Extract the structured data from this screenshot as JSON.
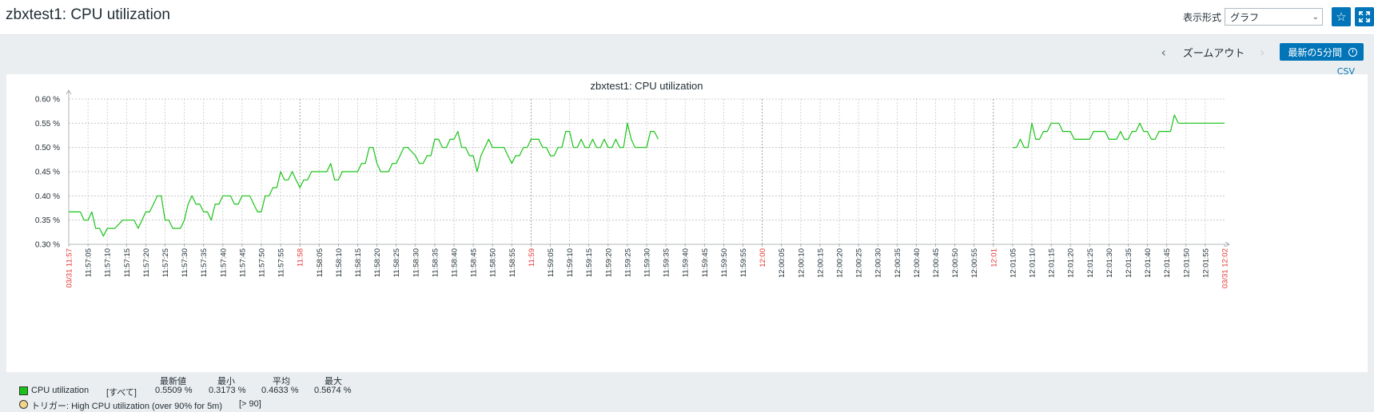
{
  "page": {
    "title": "zbxtest1: CPU utilization"
  },
  "header": {
    "view_label": "表示形式",
    "view_select": "グラフ",
    "favorite_icon": "star-icon",
    "fullscreen_icon": "fullscreen-icon"
  },
  "timebar": {
    "prev_icon": "chevron-left-icon",
    "zoom_out": "ズームアウト",
    "next_icon": "chevron-right-icon",
    "latest_button": "最新の5分間",
    "clock_icon": "clock-icon",
    "csv": "CSV"
  },
  "colors": {
    "series": "#1ac318",
    "accent": "#0275b8",
    "red_labels": "#e33734",
    "trigger": "#f2d48a"
  },
  "chart_data": {
    "type": "line",
    "title": "zbxtest1: CPU utilization",
    "y_ticks": [
      "0.60 %",
      "0.55 %",
      "0.50 %",
      "0.45 %",
      "0.40 %",
      "0.35 %",
      "0.30 %"
    ],
    "ylim": [
      0.3,
      0.6
    ],
    "x_ticks": [
      "03/31 11:57",
      "11:57:05",
      "11:57:10",
      "11:57:15",
      "11:57:20",
      "11:57:25",
      "11:57:30",
      "11:57:35",
      "11:57:40",
      "11:57:45",
      "11:57:50",
      "11:57:55",
      "11:58",
      "11:58:05",
      "11:58:10",
      "11:58:15",
      "11:58:20",
      "11:58:25",
      "11:58:30",
      "11:58:35",
      "11:58:40",
      "11:58:45",
      "11:58:50",
      "11:58:55",
      "11:59",
      "11:59:05",
      "11:59:10",
      "11:59:15",
      "11:59:20",
      "11:59:25",
      "11:59:30",
      "11:59:35",
      "11:59:40",
      "11:59:45",
      "11:59:50",
      "11:59:55",
      "12:00",
      "12:00:05",
      "12:00:10",
      "12:00:15",
      "12:00:20",
      "12:00:25",
      "12:00:30",
      "12:00:35",
      "12:00:40",
      "12:00:45",
      "12:00:50",
      "12:00:55",
      "12:01",
      "12:01:05",
      "12:01:10",
      "12:01:15",
      "12:01:20",
      "12:01:25",
      "12:01:30",
      "12:01:35",
      "12:01:40",
      "12:01:45",
      "12:01:50",
      "12:01:55",
      "03/31 12:02"
    ],
    "x_highlight": [
      "03/31 11:57",
      "11:58",
      "11:59",
      "12:00",
      "12:01",
      "03/31 12:02"
    ],
    "grid": true,
    "series": [
      {
        "name": "CPU utilization",
        "segments": [
          [
            [
              0,
              0.367
            ],
            [
              3,
              0.367
            ],
            [
              4,
              0.35
            ],
            [
              5,
              0.35
            ],
            [
              6,
              0.367
            ],
            [
              7,
              0.333
            ],
            [
              8,
              0.333
            ],
            [
              9,
              0.317
            ],
            [
              10,
              0.333
            ],
            [
              11,
              0.333
            ],
            [
              12,
              0.333
            ],
            [
              14,
              0.35
            ],
            [
              17,
              0.35
            ],
            [
              18,
              0.333
            ],
            [
              19,
              0.35
            ],
            [
              20,
              0.367
            ],
            [
              21,
              0.367
            ],
            [
              22,
              0.383
            ],
            [
              23,
              0.4
            ],
            [
              24,
              0.4
            ],
            [
              25,
              0.35
            ],
            [
              26,
              0.35
            ],
            [
              27,
              0.333
            ],
            [
              28,
              0.333
            ],
            [
              29,
              0.333
            ],
            [
              30,
              0.35
            ],
            [
              31,
              0.383
            ],
            [
              32,
              0.4
            ],
            [
              33,
              0.383
            ],
            [
              34,
              0.383
            ],
            [
              35,
              0.367
            ],
            [
              36,
              0.367
            ],
            [
              37,
              0.35
            ],
            [
              38,
              0.383
            ],
            [
              39,
              0.383
            ],
            [
              40,
              0.4
            ],
            [
              42,
              0.4
            ],
            [
              43,
              0.383
            ],
            [
              44,
              0.383
            ],
            [
              45,
              0.4
            ],
            [
              47,
              0.4
            ],
            [
              48,
              0.383
            ],
            [
              49,
              0.367
            ],
            [
              50,
              0.367
            ],
            [
              51,
              0.4
            ],
            [
              52,
              0.4
            ],
            [
              53,
              0.417
            ],
            [
              54,
              0.417
            ],
            [
              55,
              0.45
            ],
            [
              56,
              0.433
            ],
            [
              57,
              0.433
            ],
            [
              58,
              0.45
            ],
            [
              59,
              0.433
            ],
            [
              60,
              0.417
            ],
            [
              61,
              0.433
            ],
            [
              62,
              0.433
            ],
            [
              63,
              0.45
            ],
            [
              67,
              0.45
            ],
            [
              68,
              0.467
            ],
            [
              69,
              0.433
            ],
            [
              70,
              0.433
            ],
            [
              71,
              0.45
            ],
            [
              75,
              0.45
            ],
            [
              76,
              0.467
            ],
            [
              77,
              0.467
            ],
            [
              78,
              0.5
            ],
            [
              79,
              0.5
            ],
            [
              80,
              0.467
            ],
            [
              81,
              0.45
            ],
            [
              82,
              0.45
            ],
            [
              83,
              0.45
            ],
            [
              84,
              0.467
            ],
            [
              85,
              0.467
            ],
            [
              86,
              0.483
            ],
            [
              87,
              0.5
            ],
            [
              88,
              0.5
            ],
            [
              90,
              0.483
            ],
            [
              91,
              0.467
            ],
            [
              92,
              0.467
            ],
            [
              93,
              0.483
            ],
            [
              94,
              0.483
            ],
            [
              95,
              0.517
            ],
            [
              96,
              0.517
            ],
            [
              97,
              0.5
            ],
            [
              98,
              0.5
            ],
            [
              99,
              0.517
            ],
            [
              100,
              0.517
            ],
            [
              101,
              0.533
            ],
            [
              102,
              0.5
            ],
            [
              103,
              0.5
            ],
            [
              104,
              0.483
            ],
            [
              105,
              0.483
            ],
            [
              106,
              0.45
            ],
            [
              107,
              0.483
            ],
            [
              108,
              0.5
            ],
            [
              109,
              0.517
            ],
            [
              110,
              0.5
            ],
            [
              111,
              0.5
            ],
            [
              113,
              0.5
            ],
            [
              114,
              0.483
            ],
            [
              115,
              0.467
            ],
            [
              116,
              0.483
            ],
            [
              117,
              0.483
            ],
            [
              118,
              0.5
            ],
            [
              119,
              0.5
            ],
            [
              120,
              0.517
            ],
            [
              122,
              0.517
            ],
            [
              123,
              0.5
            ],
            [
              124,
              0.5
            ],
            [
              125,
              0.483
            ],
            [
              126,
              0.483
            ],
            [
              127,
              0.5
            ],
            [
              128,
              0.5
            ],
            [
              129,
              0.533
            ],
            [
              130,
              0.533
            ],
            [
              131,
              0.5
            ],
            [
              132,
              0.5
            ],
            [
              133,
              0.517
            ],
            [
              134,
              0.5
            ],
            [
              135,
              0.5
            ],
            [
              136,
              0.517
            ],
            [
              137,
              0.5
            ],
            [
              138,
              0.5
            ],
            [
              139,
              0.517
            ],
            [
              140,
              0.5
            ],
            [
              141,
              0.5
            ],
            [
              142,
              0.517
            ],
            [
              143,
              0.5
            ],
            [
              144,
              0.5
            ],
            [
              145,
              0.55
            ],
            [
              146,
              0.517
            ],
            [
              147,
              0.5
            ],
            [
              150,
              0.5
            ],
            [
              151,
              0.533
            ],
            [
              152,
              0.533
            ],
            [
              153,
              0.517
            ]
          ],
          [
            [
              245,
              0.5
            ],
            [
              246,
              0.5
            ],
            [
              247,
              0.517
            ],
            [
              248,
              0.5
            ],
            [
              249,
              0.5
            ],
            [
              250,
              0.55
            ],
            [
              251,
              0.517
            ],
            [
              252,
              0.517
            ],
            [
              253,
              0.533
            ],
            [
              254,
              0.533
            ],
            [
              255,
              0.55
            ],
            [
              257,
              0.55
            ],
            [
              258,
              0.533
            ],
            [
              260,
              0.533
            ],
            [
              261,
              0.517
            ],
            [
              265,
              0.517
            ],
            [
              266,
              0.533
            ],
            [
              269,
              0.533
            ],
            [
              270,
              0.517
            ],
            [
              272,
              0.517
            ],
            [
              273,
              0.533
            ],
            [
              274,
              0.517
            ],
            [
              275,
              0.517
            ],
            [
              276,
              0.533
            ],
            [
              277,
              0.533
            ],
            [
              278,
              0.55
            ],
            [
              279,
              0.533
            ],
            [
              280,
              0.533
            ],
            [
              281,
              0.517
            ],
            [
              282,
              0.517
            ],
            [
              283,
              0.533
            ],
            [
              286,
              0.533
            ],
            [
              287,
              0.567
            ],
            [
              288,
              0.55
            ],
            [
              300,
              0.55
            ]
          ]
        ]
      }
    ],
    "x_domain": [
      0,
      300
    ]
  },
  "legend": {
    "headers": [
      "最新値",
      "最小",
      "平均",
      "最大"
    ],
    "item": {
      "name": "CPU utilization",
      "function": "[すべて]",
      "last": "0.5509 %",
      "min": "0.3173 %",
      "avg": "0.4633 %",
      "max": "0.5674 %"
    },
    "trigger": {
      "name": "トリガー: High CPU utilization (over 90% for 5m)",
      "threshold": "[> 90]"
    }
  }
}
